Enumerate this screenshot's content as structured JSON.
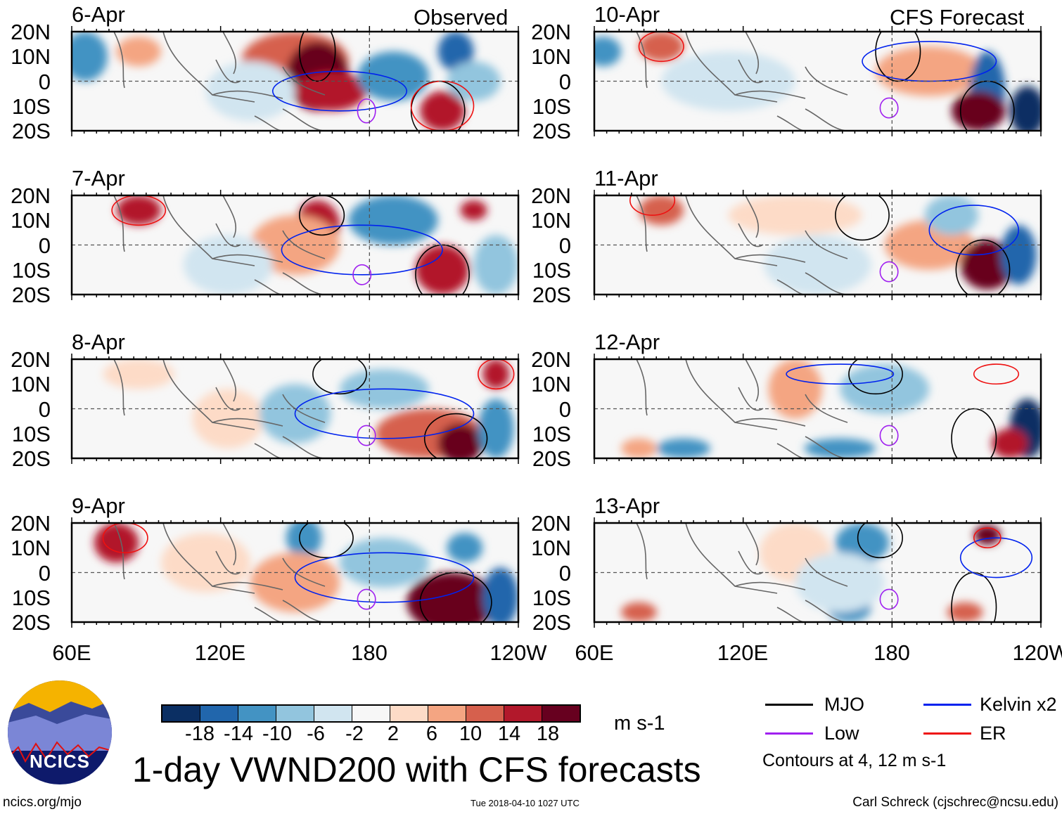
{
  "labels": {
    "observed": "Observed",
    "forecast": "CFS Forecast"
  },
  "panels": [
    {
      "date": "6-Apr",
      "type": "observed"
    },
    {
      "date": "7-Apr",
      "type": "observed"
    },
    {
      "date": "8-Apr",
      "type": "observed"
    },
    {
      "date": "9-Apr",
      "type": "observed"
    },
    {
      "date": "10-Apr",
      "type": "forecast"
    },
    {
      "date": "11-Apr",
      "type": "forecast"
    },
    {
      "date": "12-Apr",
      "type": "forecast"
    },
    {
      "date": "13-Apr",
      "type": "forecast"
    }
  ],
  "lat_ticks": [
    "20N",
    "10N",
    "0",
    "10S",
    "20S"
  ],
  "lon_ticks": [
    "60E",
    "120E",
    "180",
    "120W"
  ],
  "colorbar": {
    "colors": [
      "#0b2f63",
      "#2166ac",
      "#4393c3",
      "#92c5de",
      "#d1e5f0",
      "#f7f7f7",
      "#fddbc7",
      "#f4a582",
      "#d6604d",
      "#b2182b",
      "#67001f"
    ],
    "tick_labels": [
      "-18",
      "-14",
      "-10",
      "-6",
      "-2",
      "2",
      "6",
      "10",
      "14",
      "18"
    ],
    "units": "m s-1"
  },
  "legend": {
    "items": [
      {
        "label": "MJO",
        "color": "#000000"
      },
      {
        "label": "Kelvin x2",
        "color": "#0022ee"
      },
      {
        "label": "Low",
        "color": "#a020f0"
      },
      {
        "label": "ER",
        "color": "#ee1111"
      }
    ],
    "note": "Contours at 4, 12 m s-1"
  },
  "title": "1-day VWND200 with CFS forecasts",
  "footer": {
    "left": "ncics.org/mjo",
    "center": "Tue 2018-04-10 1027 UTC",
    "right": "Carl Schreck (cjschrec@ncsu.edu)"
  },
  "logo": {
    "text": "NCICS"
  }
}
